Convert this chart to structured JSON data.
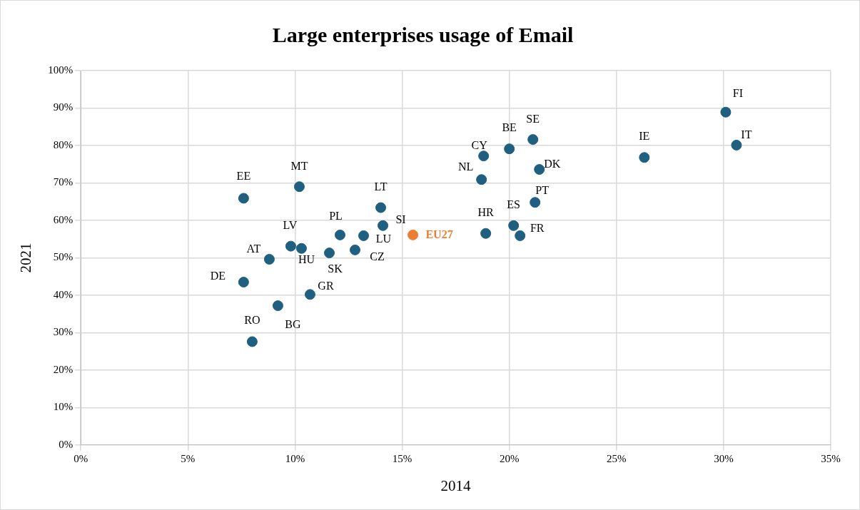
{
  "chart_data": {
    "type": "scatter",
    "title": "Large enterprises usage of Email",
    "xlabel": "2014",
    "ylabel": "2021",
    "xlim": [
      0,
      35
    ],
    "xticks": [
      {
        "value": 0,
        "label": "0%"
      },
      {
        "value": 5,
        "label": "5%"
      },
      {
        "value": 10,
        "label": "10%"
      },
      {
        "value": 15,
        "label": "15%"
      },
      {
        "value": 20,
        "label": "20%"
      },
      {
        "value": 25,
        "label": "25%"
      },
      {
        "value": 30,
        "label": "30%"
      },
      {
        "value": 35,
        "label": "35%"
      }
    ],
    "ylim": [
      0,
      100
    ],
    "yticks": [
      {
        "value": 0,
        "label": "0%"
      },
      {
        "value": 10,
        "label": "10%"
      },
      {
        "value": 20,
        "label": "20%"
      },
      {
        "value": 30,
        "label": "30%"
      },
      {
        "value": 40,
        "label": "40%"
      },
      {
        "value": 50,
        "label": "50%"
      },
      {
        "value": 60,
        "label": "60%"
      },
      {
        "value": 70,
        "label": "70%"
      },
      {
        "value": 80,
        "label": "80%"
      },
      {
        "value": 90,
        "label": "90%"
      },
      {
        "value": 100,
        "label": "100%"
      }
    ],
    "grid": true,
    "legend": false,
    "marker": "circle",
    "series": [
      {
        "name": "EE",
        "color": "#1f5f7f",
        "x": [
          7.6
        ],
        "values": [
          65.9
        ]
      },
      {
        "name": "MT",
        "color": "#1f5f7f",
        "x": [
          10.2
        ],
        "values": [
          69.0
        ]
      },
      {
        "name": "LT",
        "color": "#1f5f7f",
        "x": [
          14.0
        ],
        "values": [
          63.4
        ]
      },
      {
        "name": "SI",
        "color": "#1f5f7f",
        "x": [
          14.1
        ],
        "values": [
          58.6
        ]
      },
      {
        "name": "PL",
        "color": "#1f5f7f",
        "x": [
          12.1
        ],
        "values": [
          56.1
        ]
      },
      {
        "name": "LU",
        "color": "#1f5f7f",
        "x": [
          13.2
        ],
        "values": [
          55.9
        ]
      },
      {
        "name": "CZ",
        "color": "#1f5f7f",
        "x": [
          12.8
        ],
        "values": [
          52.1
        ]
      },
      {
        "name": "SK",
        "color": "#1f5f7f",
        "x": [
          11.6
        ],
        "values": [
          51.3
        ]
      },
      {
        "name": "HU",
        "color": "#1f5f7f",
        "x": [
          10.3
        ],
        "values": [
          52.5
        ]
      },
      {
        "name": "LV",
        "color": "#1f5f7f",
        "x": [
          9.8
        ],
        "values": [
          53.1
        ]
      },
      {
        "name": "AT",
        "color": "#1f5f7f",
        "x": [
          8.8
        ],
        "values": [
          49.6
        ]
      },
      {
        "name": "DE",
        "color": "#1f5f7f",
        "x": [
          7.6
        ],
        "values": [
          43.5
        ]
      },
      {
        "name": "BG",
        "color": "#1f5f7f",
        "x": [
          9.2
        ],
        "values": [
          37.2
        ]
      },
      {
        "name": "GR",
        "color": "#1f5f7f",
        "x": [
          10.7
        ],
        "values": [
          40.2
        ]
      },
      {
        "name": "RO",
        "color": "#1f5f7f",
        "x": [
          8.0
        ],
        "values": [
          27.6
        ]
      },
      {
        "name": "EU27",
        "color": "#ed7d31",
        "x": [
          15.5
        ],
        "values": [
          56.1
        ]
      },
      {
        "name": "CY",
        "color": "#1f5f7f",
        "x": [
          18.8
        ],
        "values": [
          77.2
        ]
      },
      {
        "name": "BE",
        "color": "#1f5f7f",
        "x": [
          20.0
        ],
        "values": [
          79.1
        ]
      },
      {
        "name": "SE",
        "color": "#1f5f7f",
        "x": [
          21.1
        ],
        "values": [
          81.6
        ]
      },
      {
        "name": "NL",
        "color": "#1f5f7f",
        "x": [
          18.7
        ],
        "values": [
          70.9
        ]
      },
      {
        "name": "DK",
        "color": "#1f5f7f",
        "x": [
          21.4
        ],
        "values": [
          73.6
        ]
      },
      {
        "name": "PT",
        "color": "#1f5f7f",
        "x": [
          21.2
        ],
        "values": [
          64.8
        ]
      },
      {
        "name": "HR",
        "color": "#1f5f7f",
        "x": [
          18.9
        ],
        "values": [
          56.5
        ]
      },
      {
        "name": "ES",
        "color": "#1f5f7f",
        "x": [
          20.2
        ],
        "values": [
          58.6
        ]
      },
      {
        "name": "FR",
        "color": "#1f5f7f",
        "x": [
          20.5
        ],
        "values": [
          55.9
        ]
      },
      {
        "name": "IE",
        "color": "#1f5f7f",
        "x": [
          26.3
        ],
        "values": [
          76.8
        ]
      },
      {
        "name": "FI",
        "color": "#1f5f7f",
        "x": [
          30.1
        ],
        "values": [
          88.9
        ]
      },
      {
        "name": "IT",
        "color": "#1f5f7f",
        "x": [
          30.6
        ],
        "values": [
          80.1
        ]
      }
    ]
  }
}
